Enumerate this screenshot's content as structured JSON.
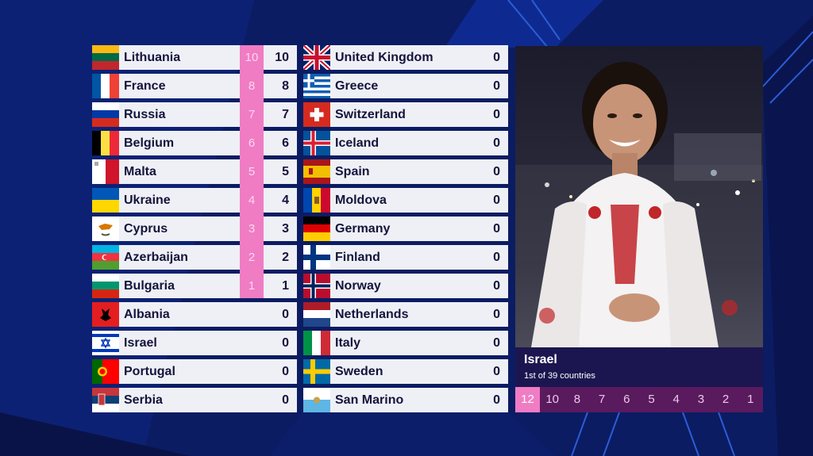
{
  "left_column": [
    {
      "country": "Lithuania",
      "points": "10",
      "total": "10",
      "flag": "lithuania-flag"
    },
    {
      "country": "France",
      "points": "8",
      "total": "8",
      "flag": "france-flag"
    },
    {
      "country": "Russia",
      "points": "7",
      "total": "7",
      "flag": "russia-flag"
    },
    {
      "country": "Belgium",
      "points": "6",
      "total": "6",
      "flag": "belgium-flag"
    },
    {
      "country": "Malta",
      "points": "5",
      "total": "5",
      "flag": "malta-flag"
    },
    {
      "country": "Ukraine",
      "points": "4",
      "total": "4",
      "flag": "ukraine-flag"
    },
    {
      "country": "Cyprus",
      "points": "3",
      "total": "3",
      "flag": "cyprus-flag"
    },
    {
      "country": "Azerbaijan",
      "points": "2",
      "total": "2",
      "flag": "azerbaijan-flag"
    },
    {
      "country": "Bulgaria",
      "points": "1",
      "total": "1",
      "flag": "bulgaria-flag"
    },
    {
      "country": "Albania",
      "points": "",
      "total": "0",
      "flag": "albania-flag"
    },
    {
      "country": "Israel",
      "points": "",
      "total": "0",
      "flag": "israel-flag"
    },
    {
      "country": "Portugal",
      "points": "",
      "total": "0",
      "flag": "portugal-flag"
    },
    {
      "country": "Serbia",
      "points": "",
      "total": "0",
      "flag": "serbia-flag"
    }
  ],
  "right_column": [
    {
      "country": "United Kingdom",
      "total": "0",
      "flag": "united-kingdom-flag"
    },
    {
      "country": "Greece",
      "total": "0",
      "flag": "greece-flag"
    },
    {
      "country": "Switzerland",
      "total": "0",
      "flag": "switzerland-flag"
    },
    {
      "country": "Iceland",
      "total": "0",
      "flag": "iceland-flag"
    },
    {
      "country": "Spain",
      "total": "0",
      "flag": "spain-flag"
    },
    {
      "country": "Moldova",
      "total": "0",
      "flag": "moldova-flag"
    },
    {
      "country": "Germany",
      "total": "0",
      "flag": "germany-flag"
    },
    {
      "country": "Finland",
      "total": "0",
      "flag": "finland-flag"
    },
    {
      "country": "Norway",
      "total": "0",
      "flag": "norway-flag"
    },
    {
      "country": "Netherlands",
      "total": "0",
      "flag": "netherlands-flag"
    },
    {
      "country": "Italy",
      "total": "0",
      "flag": "italy-flag"
    },
    {
      "country": "Sweden",
      "total": "0",
      "flag": "sweden-flag"
    },
    {
      "country": "San Marino",
      "total": "0",
      "flag": "san-marino-flag"
    }
  ],
  "spokesperson": {
    "country": "Israel",
    "subtitle": "1st of 39 countries"
  },
  "points_scale": [
    "12",
    "10",
    "8",
    "7",
    "6",
    "5",
    "4",
    "3",
    "2",
    "1"
  ],
  "active_point": "12",
  "colors": {
    "accent_pink": "#f07cc4",
    "row_bg": "#eef0f5",
    "points_bar_bg": "#5a1a5e",
    "info_bg": "#1c1650",
    "background": "#0a1a5c"
  }
}
